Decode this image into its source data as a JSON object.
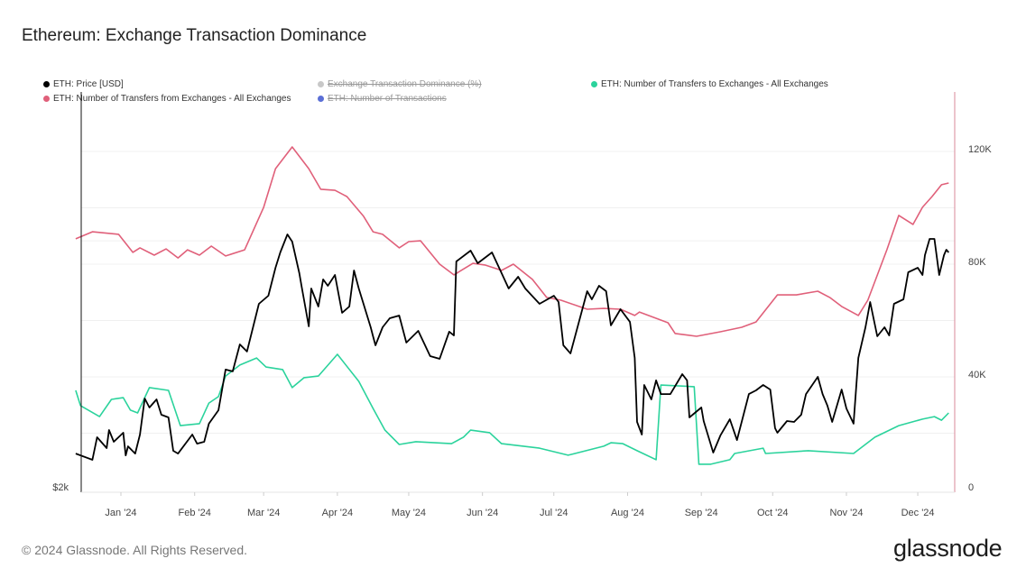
{
  "header": {
    "title": "Ethereum: Exchange Transaction Dominance"
  },
  "legend": [
    {
      "label": "ETH: Price [USD]",
      "color": "#000000",
      "active": true
    },
    {
      "label": "Exchange Transaction Dominance (%)",
      "color": "#c8c8c8",
      "active": false
    },
    {
      "label": "ETH: Number of Transfers to Exchanges - All Exchanges",
      "color": "#2bd39c",
      "active": true
    },
    {
      "label": "ETH: Number of Transfers from Exchanges - All Exchanges",
      "color": "#e0607a",
      "active": true
    },
    {
      "label": "ETH: Number of Transactions",
      "color": "#5b6fd6",
      "active": false
    }
  ],
  "footer": {
    "copyright": "© 2024 Glassnode. All Rights Reserved.",
    "logo": "glassnode"
  },
  "chart_data": {
    "type": "line",
    "title": "Ethereum: Exchange Transaction Dominance",
    "x_tick_labels": [
      "Jan '24",
      "Feb '24",
      "Mar '24",
      "Apr '24",
      "May '24",
      "Jun '24",
      "Jul '24",
      "Aug '24",
      "Sep '24",
      "Oct '24",
      "Nov '24",
      "Dec '24"
    ],
    "x_tick_dates": [
      "2024-01-01",
      "2024-02-01",
      "2024-03-01",
      "2024-04-01",
      "2024-05-01",
      "2024-06-01",
      "2024-07-01",
      "2024-08-01",
      "2024-09-01",
      "2024-10-01",
      "2024-11-01",
      "2024-12-01"
    ],
    "xlim": [
      "2023-12-13",
      "2024-12-14"
    ],
    "left_axis": {
      "scale": "log",
      "tick_labels": [
        "$2k"
      ],
      "min": 2000,
      "gridline_at": 4000
    },
    "right_axis": {
      "scale": "linear",
      "tick_labels": [
        "0",
        "40K",
        "80K",
        "120K"
      ],
      "ticks": [
        0,
        40000,
        80000,
        120000
      ],
      "ylim": [
        0,
        120000
      ]
    },
    "grid": true,
    "legend_position": "top-left",
    "series": [
      {
        "name": "ETH: Number of Transfers from Exchanges - All Exchanges",
        "axis": "right",
        "color": "#e0607a",
        "unit": "K",
        "points": [
          [
            "2023-12-13",
            89.0
          ],
          [
            "2023-12-20",
            91.5
          ],
          [
            "2023-12-31",
            90.6
          ],
          [
            "2024-01-06",
            84.2
          ],
          [
            "2024-01-09",
            85.8
          ],
          [
            "2024-01-15",
            83.2
          ],
          [
            "2024-01-20",
            85.4
          ],
          [
            "2024-01-25",
            82.2
          ],
          [
            "2024-01-29",
            85.1
          ],
          [
            "2024-02-03",
            83.2
          ],
          [
            "2024-02-08",
            86.4
          ],
          [
            "2024-02-14",
            82.9
          ],
          [
            "2024-02-22",
            85.1
          ],
          [
            "2024-03-01",
            100.2
          ],
          [
            "2024-03-06",
            113.9
          ],
          [
            "2024-03-13",
            121.6
          ],
          [
            "2024-03-20",
            113.9
          ],
          [
            "2024-03-25",
            106.6
          ],
          [
            "2024-03-31",
            106.2
          ],
          [
            "2024-04-05",
            104.0
          ],
          [
            "2024-04-12",
            97.0
          ],
          [
            "2024-04-16",
            91.5
          ],
          [
            "2024-04-20",
            90.6
          ],
          [
            "2024-04-27",
            85.8
          ],
          [
            "2024-05-01",
            88.0
          ],
          [
            "2024-05-06",
            88.3
          ],
          [
            "2024-05-14",
            80.0
          ],
          [
            "2024-05-20",
            76.2
          ],
          [
            "2024-05-28",
            80.3
          ],
          [
            "2024-06-02",
            79.7
          ],
          [
            "2024-06-09",
            77.8
          ],
          [
            "2024-06-14",
            80.0
          ],
          [
            "2024-06-22",
            74.6
          ],
          [
            "2024-06-28",
            68.2
          ],
          [
            "2024-07-04",
            67.2
          ],
          [
            "2024-07-15",
            64.0
          ],
          [
            "2024-07-22",
            64.3
          ],
          [
            "2024-07-29",
            64.0
          ],
          [
            "2024-08-04",
            61.8
          ],
          [
            "2024-08-06",
            63.0
          ],
          [
            "2024-08-18",
            59.2
          ],
          [
            "2024-08-21",
            55.4
          ],
          [
            "2024-08-30",
            54.4
          ],
          [
            "2024-09-09",
            56.0
          ],
          [
            "2024-09-18",
            57.6
          ],
          [
            "2024-09-24",
            59.5
          ],
          [
            "2024-10-03",
            69.1
          ],
          [
            "2024-10-11",
            69.1
          ],
          [
            "2024-10-20",
            70.4
          ],
          [
            "2024-10-25",
            68.2
          ],
          [
            "2024-10-30",
            65.0
          ],
          [
            "2024-11-06",
            61.8
          ],
          [
            "2024-11-10",
            67.2
          ],
          [
            "2024-11-18",
            85.1
          ],
          [
            "2024-11-23",
            97.3
          ],
          [
            "2024-11-29",
            94.1
          ],
          [
            "2024-12-03",
            100.2
          ],
          [
            "2024-12-07",
            104.0
          ],
          [
            "2024-12-11",
            108.2
          ],
          [
            "2024-12-14",
            108.8
          ]
        ]
      },
      {
        "name": "ETH: Number of Transfers to Exchanges - All Exchanges",
        "axis": "right",
        "color": "#2bd39c",
        "unit": "K",
        "points": [
          [
            "2023-12-13",
            35.2
          ],
          [
            "2023-12-15",
            29.8
          ],
          [
            "2023-12-23",
            25.9
          ],
          [
            "2023-12-28",
            32.0
          ],
          [
            "2024-01-02",
            32.6
          ],
          [
            "2024-01-05",
            28.2
          ],
          [
            "2024-01-08",
            27.2
          ],
          [
            "2024-01-13",
            36.2
          ],
          [
            "2024-01-21",
            35.2
          ],
          [
            "2024-01-26",
            22.7
          ],
          [
            "2024-02-03",
            23.4
          ],
          [
            "2024-02-07",
            30.7
          ],
          [
            "2024-02-11",
            33.0
          ],
          [
            "2024-02-14",
            40.3
          ],
          [
            "2024-02-20",
            44.2
          ],
          [
            "2024-02-27",
            46.7
          ],
          [
            "2024-03-02",
            43.5
          ],
          [
            "2024-03-09",
            42.6
          ],
          [
            "2024-03-13",
            36.2
          ],
          [
            "2024-03-18",
            39.7
          ],
          [
            "2024-03-24",
            40.3
          ],
          [
            "2024-04-01",
            48.0
          ],
          [
            "2024-04-10",
            38.4
          ],
          [
            "2024-04-16",
            28.8
          ],
          [
            "2024-04-21",
            21.1
          ],
          [
            "2024-04-27",
            16.0
          ],
          [
            "2024-05-04",
            17.0
          ],
          [
            "2024-05-19",
            16.3
          ],
          [
            "2024-05-24",
            18.6
          ],
          [
            "2024-05-27",
            21.1
          ],
          [
            "2024-06-04",
            20.2
          ],
          [
            "2024-06-09",
            16.3
          ],
          [
            "2024-06-25",
            14.7
          ],
          [
            "2024-07-07",
            12.2
          ],
          [
            "2024-07-22",
            15.4
          ],
          [
            "2024-07-25",
            16.6
          ],
          [
            "2024-07-30",
            16.3
          ],
          [
            "2024-08-05",
            13.8
          ],
          [
            "2024-08-13",
            10.6
          ],
          [
            "2024-08-15",
            37.1
          ],
          [
            "2024-08-29",
            36.5
          ],
          [
            "2024-08-31",
            9.0
          ],
          [
            "2024-09-05",
            9.0
          ],
          [
            "2024-09-13",
            10.6
          ],
          [
            "2024-09-15",
            12.8
          ],
          [
            "2024-09-27",
            14.7
          ],
          [
            "2024-09-28",
            12.8
          ],
          [
            "2024-10-16",
            13.8
          ],
          [
            "2024-11-04",
            12.8
          ],
          [
            "2024-11-13",
            18.6
          ],
          [
            "2024-11-23",
            22.7
          ],
          [
            "2024-12-03",
            25.0
          ],
          [
            "2024-12-08",
            25.9
          ],
          [
            "2024-12-11",
            24.6
          ],
          [
            "2024-12-14",
            27.2
          ]
        ]
      },
      {
        "name": "ETH: Price [USD]",
        "axis": "left",
        "color": "#000000",
        "unit": "USD",
        "points": [
          [
            "2023-12-13",
            2211
          ],
          [
            "2023-12-20",
            2173
          ],
          [
            "2023-12-22",
            2314
          ],
          [
            "2023-12-26",
            2245
          ],
          [
            "2023-12-27",
            2361
          ],
          [
            "2023-12-29",
            2285
          ],
          [
            "2024-01-02",
            2343
          ],
          [
            "2024-01-03",
            2200
          ],
          [
            "2024-01-04",
            2256
          ],
          [
            "2024-01-07",
            2211
          ],
          [
            "2024-01-09",
            2331
          ],
          [
            "2024-01-11",
            2578
          ],
          [
            "2024-01-13",
            2514
          ],
          [
            "2024-01-16",
            2571
          ],
          [
            "2024-01-18",
            2464
          ],
          [
            "2024-01-21",
            2445
          ],
          [
            "2024-01-23",
            2228
          ],
          [
            "2024-01-25",
            2211
          ],
          [
            "2024-01-31",
            2331
          ],
          [
            "2024-02-02",
            2273
          ],
          [
            "2024-02-05",
            2285
          ],
          [
            "2024-02-07",
            2403
          ],
          [
            "2024-02-11",
            2495
          ],
          [
            "2024-02-14",
            2794
          ],
          [
            "2024-02-17",
            2780
          ],
          [
            "2024-02-20",
            2997
          ],
          [
            "2024-02-23",
            2938
          ],
          [
            "2024-02-28",
            3356
          ],
          [
            "2024-03-03",
            3433
          ],
          [
            "2024-03-06",
            3711
          ],
          [
            "2024-03-08",
            3873
          ],
          [
            "2024-03-11",
            4072
          ],
          [
            "2024-03-13",
            3991
          ],
          [
            "2024-03-16",
            3655
          ],
          [
            "2024-03-17",
            3520
          ],
          [
            "2024-03-20",
            3152
          ],
          [
            "2024-03-21",
            3502
          ],
          [
            "2024-03-24",
            3331
          ],
          [
            "2024-03-26",
            3592
          ],
          [
            "2024-03-28",
            3529
          ],
          [
            "2024-03-31",
            3637
          ],
          [
            "2024-04-03",
            3273
          ],
          [
            "2024-04-06",
            3331
          ],
          [
            "2024-04-08",
            3683
          ],
          [
            "2024-04-10",
            3502
          ],
          [
            "2024-04-15",
            3144
          ],
          [
            "2024-04-16",
            3066
          ],
          [
            "2024-04-17",
            2990
          ],
          [
            "2024-04-20",
            3144
          ],
          [
            "2024-04-23",
            3224
          ],
          [
            "2024-04-27",
            3248
          ],
          [
            "2024-04-30",
            3012
          ],
          [
            "2024-05-05",
            3112
          ],
          [
            "2024-05-10",
            2901
          ],
          [
            "2024-05-14",
            2879
          ],
          [
            "2024-05-18",
            3105
          ],
          [
            "2024-05-20",
            3073
          ],
          [
            "2024-05-21",
            3777
          ],
          [
            "2024-05-27",
            3892
          ],
          [
            "2024-05-30",
            3758
          ],
          [
            "2024-06-05",
            3873
          ],
          [
            "2024-06-08",
            3711
          ],
          [
            "2024-06-12",
            3502
          ],
          [
            "2024-06-16",
            3619
          ],
          [
            "2024-06-19",
            3502
          ],
          [
            "2024-06-25",
            3356
          ],
          [
            "2024-07-01",
            3433
          ],
          [
            "2024-07-03",
            3373
          ],
          [
            "2024-07-05",
            2990
          ],
          [
            "2024-07-08",
            2923
          ],
          [
            "2024-07-15",
            3476
          ],
          [
            "2024-07-17",
            3398
          ],
          [
            "2024-07-20",
            3529
          ],
          [
            "2024-07-23",
            3476
          ],
          [
            "2024-07-25",
            3160
          ],
          [
            "2024-07-29",
            3306
          ],
          [
            "2024-08-02",
            3191
          ],
          [
            "2024-08-04",
            2886
          ],
          [
            "2024-08-05",
            2415
          ],
          [
            "2024-08-07",
            2331
          ],
          [
            "2024-08-08",
            2677
          ],
          [
            "2024-08-11",
            2571
          ],
          [
            "2024-08-13",
            2711
          ],
          [
            "2024-08-15",
            2610
          ],
          [
            "2024-08-19",
            2610
          ],
          [
            "2024-08-24",
            2759
          ],
          [
            "2024-08-26",
            2711
          ],
          [
            "2024-08-27",
            2445
          ],
          [
            "2024-09-01",
            2514
          ],
          [
            "2024-09-02",
            2421
          ],
          [
            "2024-09-06",
            2217
          ],
          [
            "2024-09-09",
            2325
          ],
          [
            "2024-09-13",
            2433
          ],
          [
            "2024-09-16",
            2296
          ],
          [
            "2024-09-21",
            2610
          ],
          [
            "2024-09-24",
            2637
          ],
          [
            "2024-09-27",
            2677
          ],
          [
            "2024-09-30",
            2643
          ],
          [
            "2024-10-02",
            2373
          ],
          [
            "2024-10-03",
            2343
          ],
          [
            "2024-10-07",
            2421
          ],
          [
            "2024-10-10",
            2415
          ],
          [
            "2024-10-13",
            2464
          ],
          [
            "2024-10-15",
            2610
          ],
          [
            "2024-10-20",
            2738
          ],
          [
            "2024-10-22",
            2610
          ],
          [
            "2024-10-24",
            2527
          ],
          [
            "2024-10-26",
            2415
          ],
          [
            "2024-10-30",
            2643
          ],
          [
            "2024-11-01",
            2507
          ],
          [
            "2024-11-04",
            2403
          ],
          [
            "2024-11-06",
            2886
          ],
          [
            "2024-11-09",
            3144
          ],
          [
            "2024-11-11",
            3373
          ],
          [
            "2024-11-14",
            3066
          ],
          [
            "2024-11-17",
            3144
          ],
          [
            "2024-11-19",
            3073
          ],
          [
            "2024-11-21",
            3356
          ],
          [
            "2024-11-25",
            3398
          ],
          [
            "2024-11-27",
            3664
          ],
          [
            "2024-12-01",
            3711
          ],
          [
            "2024-12-03",
            3637
          ],
          [
            "2024-12-04",
            3844
          ],
          [
            "2024-12-06",
            4021
          ],
          [
            "2024-12-08",
            4021
          ],
          [
            "2024-12-10",
            3637
          ],
          [
            "2024-12-12",
            3844
          ],
          [
            "2024-12-13",
            3902
          ],
          [
            "2024-12-14",
            3873
          ]
        ]
      }
    ]
  }
}
